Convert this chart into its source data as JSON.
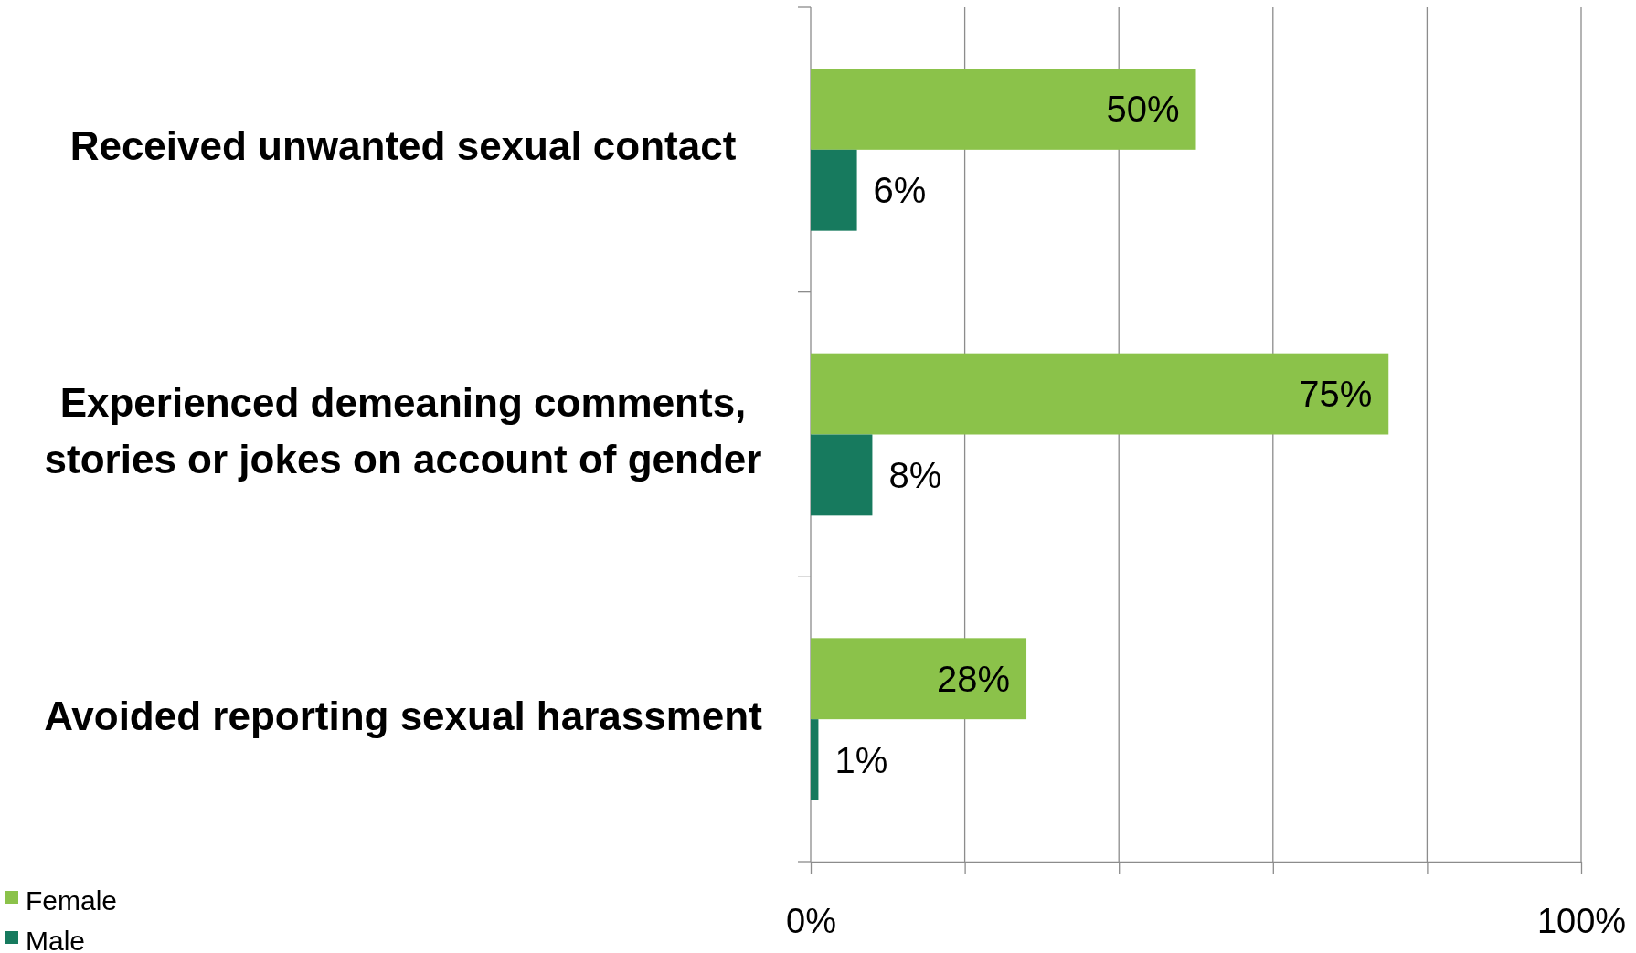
{
  "chart_data": {
    "type": "bar",
    "orientation": "horizontal",
    "categories": [
      "Received unwanted sexual contact",
      "Experienced demeaning comments, stories or jokes on account of gender",
      "Avoided reporting sexual harassment"
    ],
    "series": [
      {
        "name": "Female",
        "color": "#8bc24a",
        "values": [
          50,
          75,
          28
        ],
        "value_labels": [
          "50%",
          "75%",
          "28%"
        ]
      },
      {
        "name": "Male",
        "color": "#177a5e",
        "values": [
          6,
          8,
          1
        ],
        "value_labels": [
          "6%",
          "8%",
          "1%"
        ]
      }
    ],
    "xlim": [
      0,
      100
    ],
    "xticks": [
      {
        "value": 0,
        "label": "0%"
      },
      {
        "value": 20,
        "label": null
      },
      {
        "value": 40,
        "label": null
      },
      {
        "value": 60,
        "label": null
      },
      {
        "value": 80,
        "label": null
      },
      {
        "value": 100,
        "label": "100%"
      }
    ],
    "grid": "x",
    "legend": "bottom left"
  }
}
